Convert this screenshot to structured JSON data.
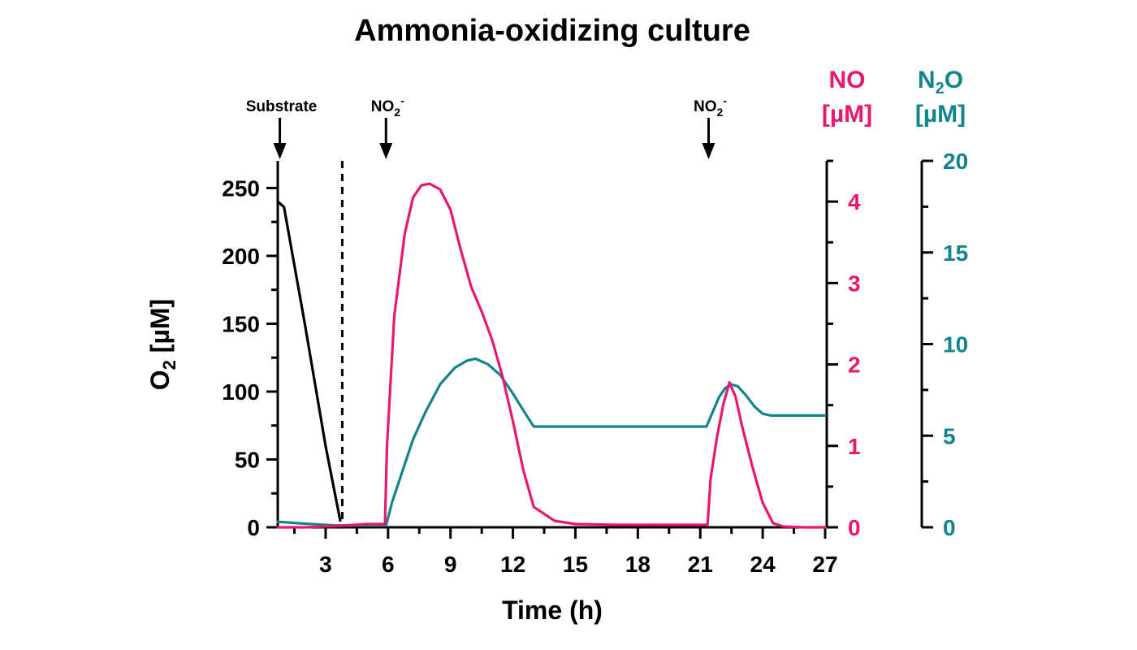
{
  "chart_data": {
    "type": "line",
    "title": "Ammonia-oxidizing culture",
    "xlabel": "Time (h)",
    "xlim": [
      0.7,
      27
    ],
    "x_ticks": [
      3,
      6,
      9,
      12,
      15,
      18,
      21,
      24,
      27
    ],
    "colors": {
      "o2": "#000000",
      "no": "#e8186e",
      "n2o": "#12858a"
    },
    "axes": {
      "o2": {
        "label": "O",
        "sub": "2",
        "unit": " [µM]",
        "ylim": [
          0,
          270
        ],
        "ticks": [
          0,
          50,
          100,
          150,
          200,
          250
        ],
        "side": "left"
      },
      "no": {
        "label": "NO",
        "unit": "[µM]",
        "ylim": [
          0,
          4.5
        ],
        "ticks": [
          0,
          1,
          2,
          3,
          4
        ],
        "side": "right"
      },
      "n2o": {
        "label": "N",
        "sub": "2",
        "label_tail": "O",
        "unit": "[µM]",
        "ylim": [
          0,
          20
        ],
        "ticks": [
          0,
          5,
          10,
          15,
          20
        ],
        "side": "right"
      }
    },
    "series": [
      {
        "key": "o2",
        "axis": "o2",
        "x": [
          0.7,
          1.0,
          2.0,
          3.0,
          3.7
        ],
        "y": [
          240,
          236,
          150,
          60,
          5
        ]
      },
      {
        "key": "no",
        "axis": "no",
        "x": [
          0.7,
          2.0,
          3.8,
          5.0,
          5.85,
          5.95,
          6.3,
          6.8,
          7.2,
          7.6,
          8.0,
          8.5,
          9.0,
          9.5,
          10.0,
          10.5,
          11.0,
          11.5,
          12.0,
          12.5,
          13.0,
          14.0,
          15.0,
          17.0,
          19.0,
          21.0,
          21.35,
          21.5,
          21.8,
          22.1,
          22.4,
          22.7,
          23.0,
          23.5,
          24.0,
          24.5,
          25.0,
          26.0,
          27.0
        ],
        "y": [
          0.0,
          0.0,
          0.02,
          0.04,
          0.04,
          1.0,
          2.6,
          3.6,
          4.05,
          4.2,
          4.22,
          4.15,
          3.9,
          3.4,
          2.95,
          2.65,
          2.3,
          1.85,
          1.3,
          0.7,
          0.25,
          0.08,
          0.04,
          0.03,
          0.03,
          0.03,
          0.03,
          0.6,
          1.1,
          1.5,
          1.78,
          1.6,
          1.25,
          0.75,
          0.3,
          0.05,
          0.01,
          0.0,
          0.0
        ]
      },
      {
        "key": "n2o",
        "axis": "n2o",
        "x": [
          0.7,
          2.0,
          3.5,
          5.0,
          5.9,
          6.2,
          6.7,
          7.2,
          7.8,
          8.5,
          9.2,
          9.8,
          10.2,
          10.8,
          11.4,
          12.0,
          12.6,
          13.0,
          15.0,
          18.0,
          20.0,
          21.3,
          21.6,
          21.9,
          22.2,
          22.5,
          22.8,
          23.2,
          23.6,
          24.0,
          24.4,
          25.0,
          27.0
        ],
        "y": [
          0.3,
          0.2,
          0.1,
          0.1,
          0.1,
          1.4,
          3.1,
          4.8,
          6.3,
          7.8,
          8.7,
          9.1,
          9.2,
          8.9,
          8.3,
          7.3,
          6.2,
          5.5,
          5.5,
          5.5,
          5.5,
          5.5,
          6.3,
          7.1,
          7.6,
          7.8,
          7.7,
          7.2,
          6.6,
          6.2,
          6.1,
          6.1,
          6.1
        ]
      }
    ],
    "dashed_line_x": 3.8,
    "annotations": [
      {
        "text": "Substrate",
        "x": 0.8,
        "arrow": true
      },
      {
        "text": "NO",
        "sub": "2",
        "sup": "-",
        "x": 5.9,
        "arrow": true
      },
      {
        "text": "NO",
        "sub": "2",
        "sup": "-",
        "x": 21.4,
        "arrow": true
      }
    ]
  }
}
